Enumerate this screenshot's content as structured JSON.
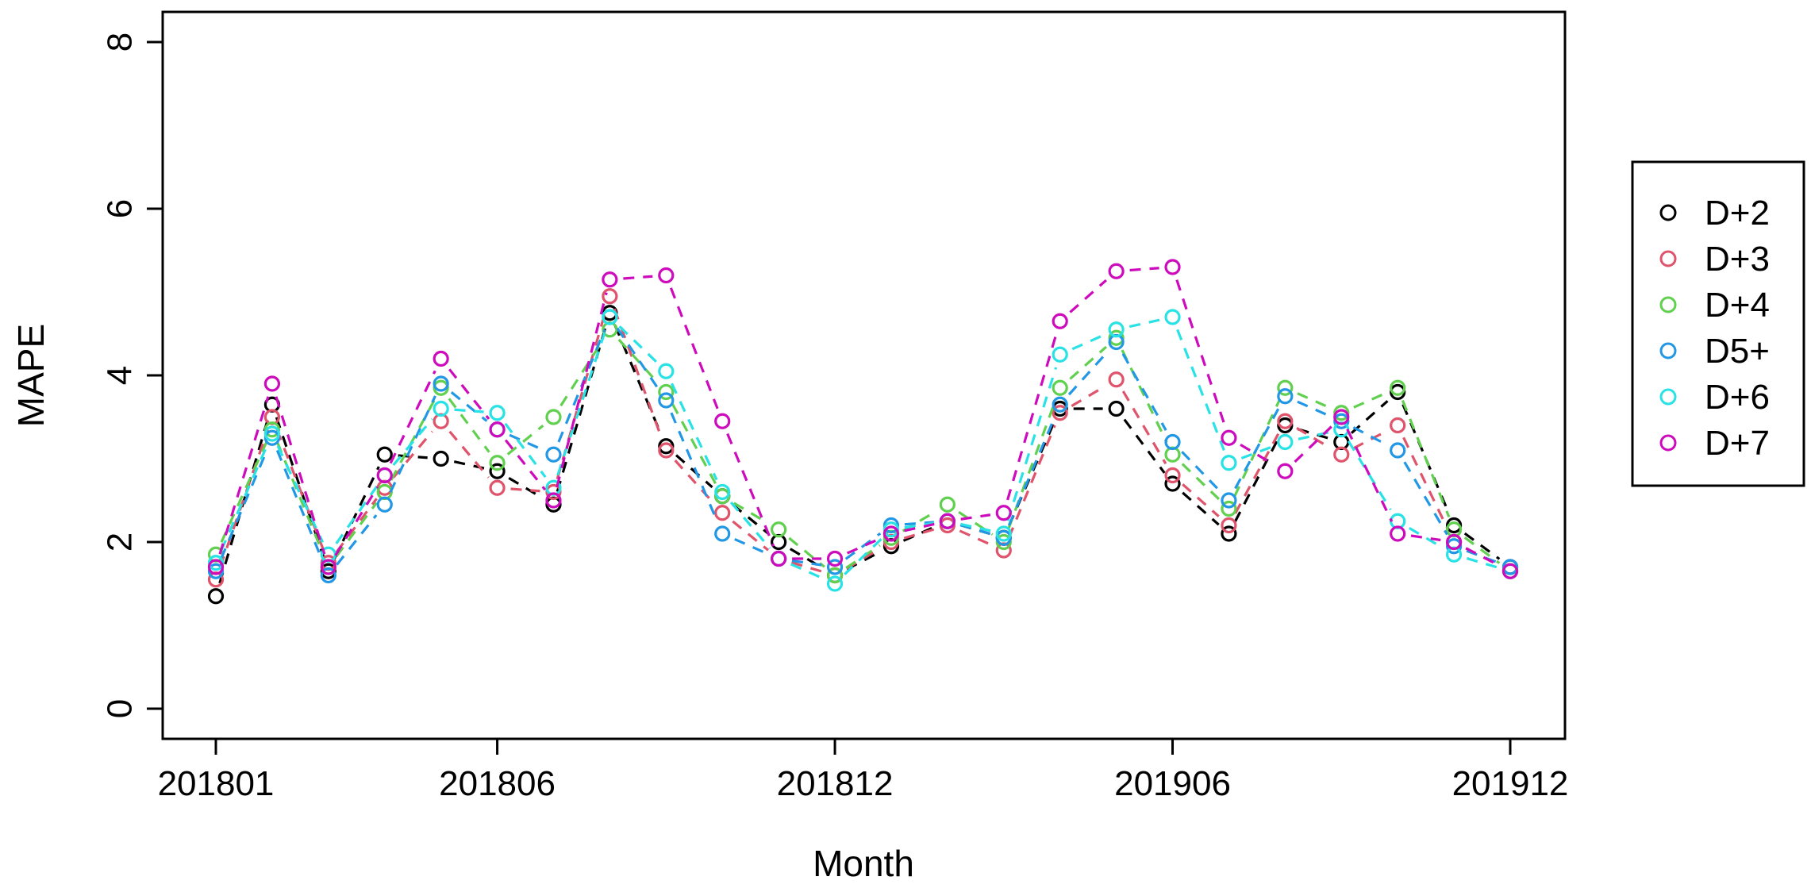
{
  "chart_data": {
    "type": "line",
    "title": "",
    "xlabel": "Month",
    "ylabel": "MAPE",
    "line_style": "dashed",
    "marker": "open-circle",
    "grid": false,
    "legend_position": "right-outside",
    "ylim": [
      0,
      8
    ],
    "y_ticks": [
      "0",
      "2",
      "4",
      "6",
      "8"
    ],
    "y_tick_values": [
      0,
      2,
      4,
      6,
      8
    ],
    "x_tick_labels": [
      "201801",
      "201806",
      "201812",
      "201906",
      "201912"
    ],
    "x_tick_indices": [
      0,
      5,
      11,
      17,
      23
    ],
    "categories": [
      "201801",
      "201802",
      "201803",
      "201804",
      "201805",
      "201806",
      "201807",
      "201808",
      "201809",
      "201810",
      "201811",
      "201812",
      "201901",
      "201902",
      "201903",
      "201904",
      "201905",
      "201906",
      "201907",
      "201908",
      "201909",
      "201910",
      "201911",
      "201912"
    ],
    "series": [
      {
        "name": "D+2",
        "color": "#000000",
        "values": [
          1.35,
          3.65,
          1.65,
          3.05,
          3.0,
          2.85,
          2.45,
          4.75,
          3.15,
          2.55,
          2.0,
          1.6,
          1.95,
          2.25,
          2.05,
          3.6,
          3.6,
          2.7,
          2.1,
          3.4,
          3.2,
          3.8,
          2.2,
          1.7
        ]
      },
      {
        "name": "D+3",
        "color": "#DF536B",
        "values": [
          1.55,
          3.5,
          1.75,
          2.65,
          3.45,
          2.65,
          2.6,
          4.95,
          3.1,
          2.35,
          1.8,
          1.6,
          2.0,
          2.2,
          1.9,
          3.55,
          3.95,
          2.8,
          2.2,
          3.45,
          3.05,
          3.4,
          2.0,
          1.65
        ]
      },
      {
        "name": "D+4",
        "color": "#61D04F",
        "values": [
          1.85,
          3.35,
          1.7,
          2.6,
          3.85,
          2.95,
          3.5,
          4.55,
          3.8,
          2.55,
          2.15,
          1.6,
          2.05,
          2.45,
          2.0,
          3.85,
          4.45,
          3.05,
          2.4,
          3.85,
          3.55,
          3.85,
          2.15,
          1.65
        ]
      },
      {
        "name": "D5+",
        "color": "#2297E6",
        "values": [
          1.65,
          3.25,
          1.6,
          2.45,
          3.9,
          3.35,
          3.05,
          4.7,
          3.7,
          2.1,
          1.8,
          1.7,
          2.2,
          2.25,
          2.05,
          3.65,
          4.4,
          3.2,
          2.5,
          3.75,
          3.45,
          3.1,
          1.95,
          1.7
        ]
      },
      {
        "name": "D+6",
        "color": "#28E2E5",
        "values": [
          1.75,
          3.3,
          1.85,
          2.8,
          3.6,
          3.55,
          2.65,
          4.7,
          4.05,
          2.6,
          1.8,
          1.5,
          2.15,
          2.25,
          2.1,
          4.25,
          4.55,
          4.7,
          2.95,
          3.2,
          3.35,
          2.25,
          1.85,
          1.65
        ]
      },
      {
        "name": "D+7",
        "color": "#CD0BBC",
        "values": [
          1.7,
          3.9,
          1.7,
          2.8,
          4.2,
          3.35,
          2.5,
          5.15,
          5.2,
          3.45,
          1.8,
          1.8,
          2.1,
          2.25,
          2.35,
          4.65,
          5.25,
          5.3,
          3.25,
          2.85,
          3.5,
          2.1,
          2.0,
          1.65
        ]
      }
    ],
    "legend_entries": [
      "D+2",
      "D+3",
      "D+4",
      "D5+",
      "D+6",
      "D+7"
    ]
  }
}
